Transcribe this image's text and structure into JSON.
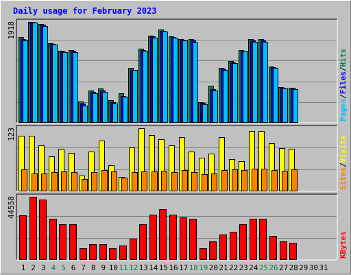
{
  "chart_data": {
    "title": "Daily usage for February 2023",
    "days": [
      "1",
      "2",
      "3",
      "4",
      "5",
      "6",
      "7",
      "8",
      "9",
      "10",
      "11",
      "12",
      "13",
      "14",
      "15",
      "16",
      "17",
      "18",
      "19",
      "20",
      "21",
      "22",
      "23",
      "24",
      "25",
      "26",
      "27",
      "28",
      "29",
      "30",
      "31"
    ],
    "weekend_days": [
      "4",
      "5",
      "11",
      "12",
      "18",
      "19",
      "25",
      "26"
    ],
    "panels": [
      {
        "type": "bar",
        "max_label": "1918",
        "max_value": 1918,
        "ylim": [
          0,
          1918
        ],
        "series": [
          {
            "name": "Hits",
            "color": "#008040",
            "values": [
              1630,
              1918,
              1880,
              1520,
              1370,
              1380,
              406,
              611,
              651,
              432,
              555,
              1040,
              1405,
              1660,
              1768,
              1650,
              1590,
              1590,
              395,
              700,
              1050,
              1170,
              1380,
              1590,
              1590,
              1070,
              677,
              660,
              0,
              0,
              0
            ]
          },
          {
            "name": "Files",
            "color": "#0000ff",
            "values": [
              1590,
              1918,
              1860,
              1500,
              1360,
              1370,
              370,
              586,
              615,
              390,
              515,
              1010,
              1385,
              1640,
              1750,
              1630,
              1580,
              1570,
              375,
              640,
              1030,
              1150,
              1360,
              1570,
              1570,
              1060,
              660,
              650,
              0,
              0,
              0
            ]
          },
          {
            "name": "Pages",
            "color": "#00c0ff",
            "values": [
              1570,
              1900,
              1835,
              1490,
              1340,
              1350,
              320,
              566,
              586,
              365,
              495,
              1000,
              1375,
              1620,
              1740,
              1620,
              1560,
              1530,
              348,
              610,
              1010,
              1130,
              1355,
              1540,
              1540,
              1045,
              648,
              635,
              0,
              0,
              0
            ]
          }
        ],
        "legend": [
          "Hits",
          "Files",
          "Pages"
        ]
      },
      {
        "type": "bar",
        "max_label": "123",
        "max_value": 123,
        "ylim": [
          0,
          123
        ],
        "series": [
          {
            "name": "Visits",
            "color": "#ffff00",
            "values": [
              108,
              108,
              89,
              68,
              83,
              75,
              31,
              77,
              99,
              51,
              28,
              86,
              123,
              110,
              101,
              89,
              106,
              77,
              66,
              73,
              106,
              63,
              59,
              117,
              117,
              94,
              84,
              83,
              0,
              0,
              0
            ]
          },
          {
            "name": "Sites",
            "color": "#ff8000",
            "values": [
              43,
              35,
              35,
              38,
              39,
              38,
              24,
              38,
              41,
              39,
              27,
              38,
              39,
              39,
              40,
              38,
              42,
              38,
              33,
              35,
              42,
              43,
              42,
              44,
              44,
              41,
              40,
              43,
              0,
              0,
              0
            ]
          }
        ],
        "legend": [
          "Visits",
          "Sites"
        ]
      },
      {
        "type": "bar",
        "max_label": "44558",
        "max_value": 44558,
        "ylim": [
          0,
          44558
        ],
        "series": [
          {
            "name": "KBytes",
            "color": "#ff0000",
            "values": [
              31700,
              44558,
              42500,
              29000,
              25000,
              25200,
              8000,
              11000,
              11000,
              8000,
              10000,
              15000,
              25000,
              32000,
              36000,
              31900,
              30100,
              29300,
              8000,
              13000,
              18000,
              20000,
              25000,
              29300,
              29300,
              17000,
              13000,
              12000,
              0,
              0,
              0
            ]
          }
        ],
        "legend": [
          "KBytes"
        ]
      }
    ]
  }
}
